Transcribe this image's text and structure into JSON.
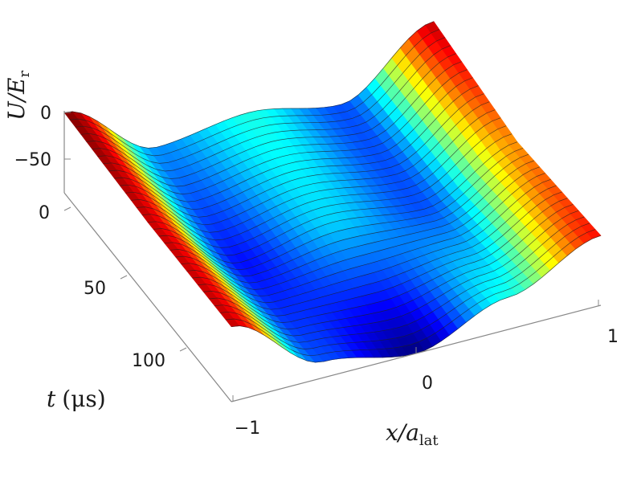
{
  "chart_data": {
    "type": "surface",
    "title": "",
    "x_axis": {
      "label_main": "x/a",
      "label_sub": "lat",
      "range": [
        -1,
        1
      ],
      "ticks": [
        "−1",
        "0",
        "1"
      ]
    },
    "t_axis": {
      "label_main": "t",
      "label_unit": "(μs)",
      "range": [
        0,
        120
      ],
      "ticks": [
        "0",
        "50",
        "100"
      ]
    },
    "z_axis": {
      "label_main": "U/E",
      "label_sub": "r",
      "range": [
        -75,
        0
      ],
      "ticks": [
        "0",
        "−50"
      ]
    },
    "surface": {
      "description_x": [
        -1,
        -0.5,
        0,
        0.5,
        1
      ],
      "description_t": [
        0,
        60,
        120
      ],
      "U_at_t0": [
        0,
        -55,
        -45,
        -60,
        -5
      ],
      "U_at_t60": [
        -5,
        -65,
        -50,
        -60,
        -20
      ],
      "U_at_t120": [
        -5,
        -60,
        -75,
        -45,
        -10
      ]
    },
    "colormap": "jet",
    "grid": false
  }
}
